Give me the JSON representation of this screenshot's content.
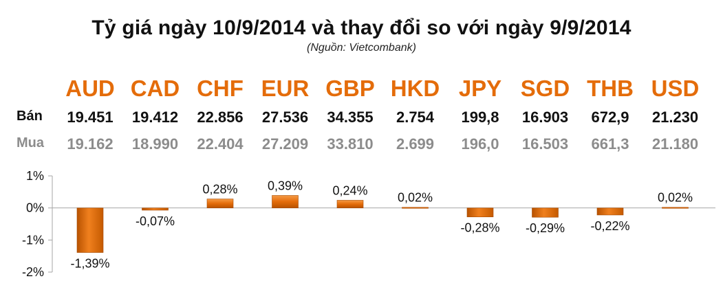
{
  "title": "Tỷ giá ngày 10/9/2014 và thay đổi so với ngày 9/9/2014",
  "source": "(Nguồn: Vietcombank)",
  "row_labels": {
    "sell": "Bán",
    "buy": "Mua"
  },
  "colors": {
    "accent": "#e46c0a",
    "buy_text": "#8c8c8c",
    "bar": "#e46c0a"
  },
  "chart_data": {
    "type": "bar",
    "categories": [
      "AUD",
      "CAD",
      "CHF",
      "EUR",
      "GBP",
      "HKD",
      "JPY",
      "SGD",
      "THB",
      "USD"
    ],
    "sell": [
      "19.451",
      "19.412",
      "22.856",
      "27.536",
      "34.355",
      "2.754",
      "199,8",
      "16.903",
      "672,9",
      "21.230"
    ],
    "buy": [
      "19.162",
      "18.990",
      "22.404",
      "27.209",
      "33.810",
      "2.699",
      "196,0",
      "16.503",
      "661,3",
      "21.180"
    ],
    "values": [
      -1.39,
      -0.07,
      0.28,
      0.39,
      0.24,
      0.02,
      -0.28,
      -0.29,
      -0.22,
      0.02
    ],
    "value_labels": [
      "-1,39%",
      "-0,07%",
      "0,28%",
      "0,39%",
      "0,24%",
      "0,02%",
      "-0,28%",
      "-0,29%",
      "-0,22%",
      "0,02%"
    ],
    "ylim": [
      -2,
      1
    ],
    "yticks": [
      1,
      0,
      -1,
      -2
    ],
    "ytick_labels": [
      "1%",
      "0%",
      "-1%",
      "-2%"
    ]
  }
}
